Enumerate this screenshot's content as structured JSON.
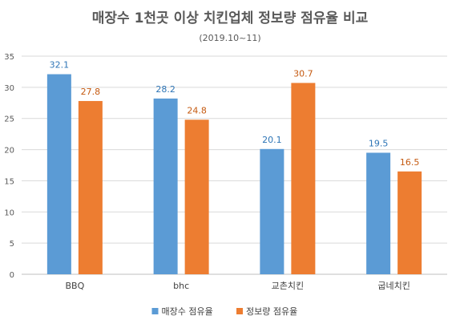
{
  "chart_data": {
    "type": "bar",
    "title": "매장수 1천곳 이상 치킨업체 정보량 점유율 비교",
    "subtitle": "(2019.10~11)",
    "categories": [
      "BBQ",
      "bhc",
      "교촌치킨",
      "굽네치킨"
    ],
    "series": [
      {
        "name": "매장수 점유율",
        "values": [
          32.1,
          28.2,
          20.1,
          19.5
        ],
        "color": "#5b9bd5",
        "label_color": "#2e75b6"
      },
      {
        "name": "정보량 점유율",
        "values": [
          27.8,
          24.8,
          30.7,
          16.5
        ],
        "color": "#ed7d31",
        "label_color": "#c55a11"
      }
    ],
    "ylim": [
      0,
      35
    ],
    "yticks": [
      0,
      5,
      10,
      15,
      20,
      25,
      30,
      35
    ],
    "grid": true,
    "legend": "bottom",
    "xlabel": "",
    "ylabel": ""
  }
}
